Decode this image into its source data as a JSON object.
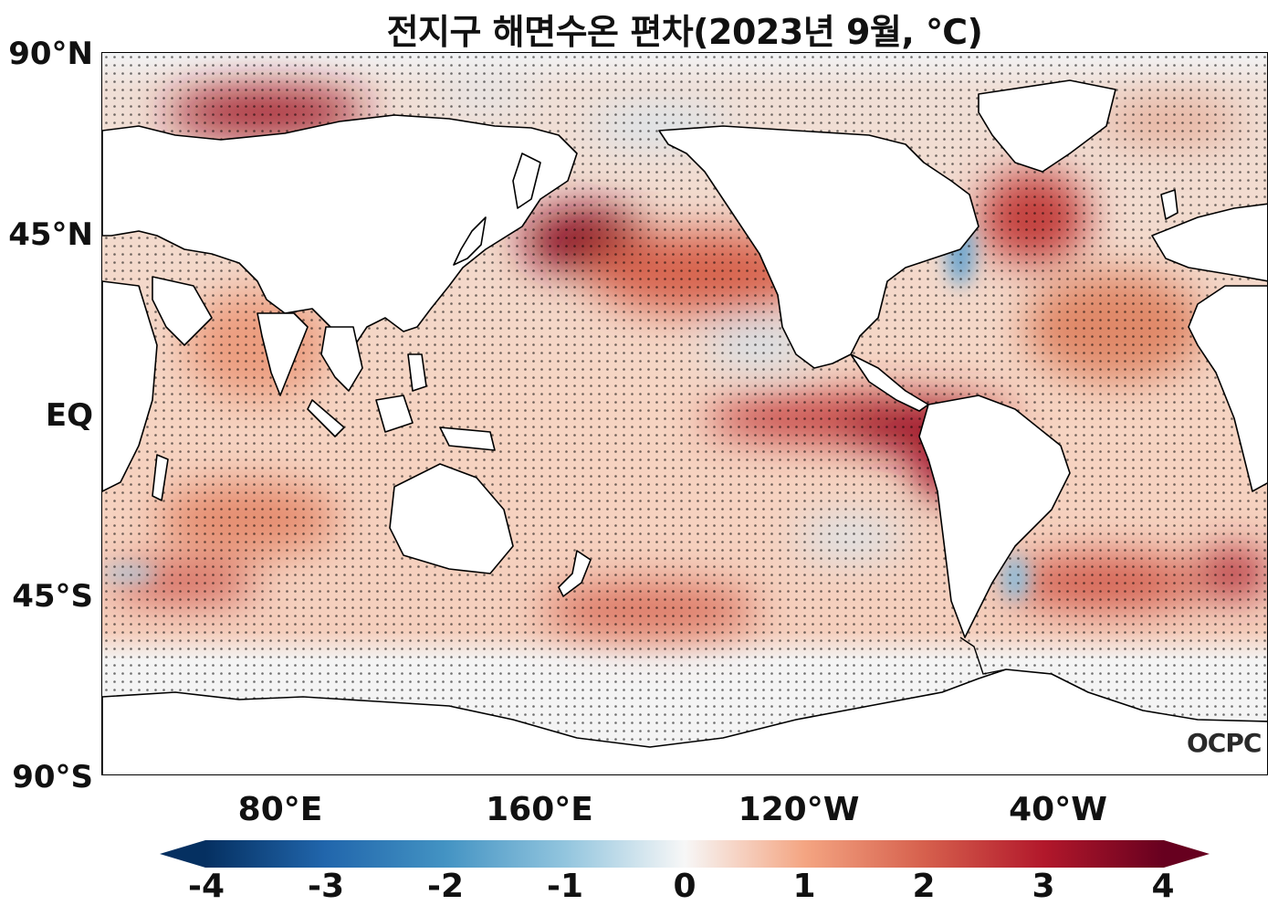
{
  "title": "전지구 해면수온 편차(2023년 9월, ℃)",
  "watermark": "OCPC",
  "lat_labels": [
    "90°N",
    "45°N",
    "EQ",
    "45°S",
    "90°S"
  ],
  "lon_labels": [
    "80°E",
    "160°E",
    "120°W",
    "40°W"
  ],
  "colorbar": {
    "ticks": [
      "-4",
      "-3",
      "-2",
      "-1",
      "0",
      "1",
      "2",
      "3",
      "4"
    ],
    "range": [
      -4,
      4
    ],
    "colors": [
      "#053061",
      "#2166ac",
      "#4393c3",
      "#92c5de",
      "#f7f7f7",
      "#f4a582",
      "#d6604d",
      "#b2182b",
      "#67001f"
    ],
    "extend": "both"
  },
  "map": {
    "ocean_base": "#f6d2bf",
    "land": "#ffffff",
    "stippling": "dots mark significant anomalies"
  }
}
